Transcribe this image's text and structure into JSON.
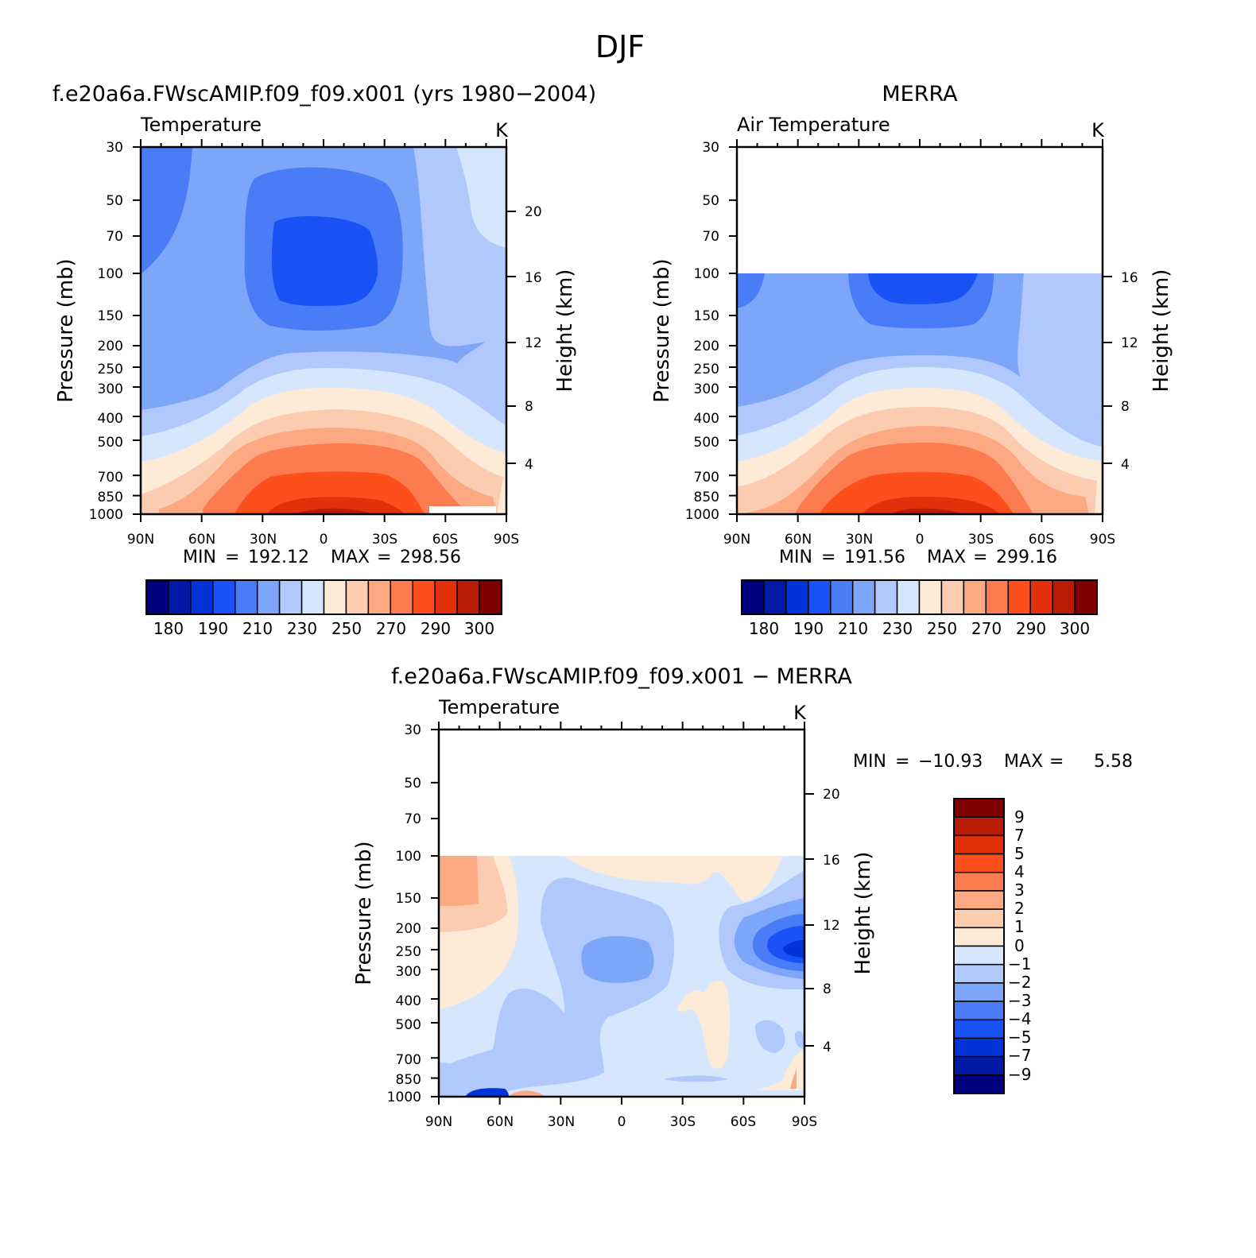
{
  "figure": {
    "title": "DJF",
    "label_min": "MIN",
    "label_max": "MAX",
    "equals": "="
  },
  "chart_data": [
    {
      "type": "heatmap",
      "panel": "model",
      "title": "f.e20a6a.FWscAMIP.f09_f09.x001 (yrs 1980−2004)",
      "variable": "Temperature",
      "units": "K",
      "ylabel": "Pressure (mb)",
      "ylabel_right": "Height (km)",
      "y_scale": "log",
      "ylim": [
        1000,
        30
      ],
      "xlim": [
        "90N",
        "90S"
      ],
      "x_ticks": [
        "90N",
        "60N",
        "30N",
        "0",
        "30S",
        "60S",
        "90S"
      ],
      "y_ticks": [
        30,
        50,
        70,
        100,
        150,
        200,
        250,
        300,
        400,
        500,
        700,
        850,
        1000
      ],
      "height_ticks": [
        4,
        8,
        12,
        16,
        20
      ],
      "min": "192.12",
      "max": "298.56",
      "colorbar_labels": [
        "180",
        "190",
        "210",
        "230",
        "250",
        "270",
        "290",
        "300"
      ]
    },
    {
      "type": "heatmap",
      "panel": "obs",
      "title": "MERRA",
      "variable": "Air Temperature",
      "units": "K",
      "ylabel": "Pressure (mb)",
      "ylabel_right": "Height (km)",
      "y_scale": "log",
      "ylim": [
        1000,
        30
      ],
      "data_top_pressure": 100,
      "xlim": [
        "90N",
        "90S"
      ],
      "x_ticks": [
        "90N",
        "60N",
        "30N",
        "0",
        "30S",
        "60S",
        "90S"
      ],
      "y_ticks": [
        30,
        50,
        70,
        100,
        150,
        200,
        250,
        300,
        400,
        500,
        700,
        850,
        1000
      ],
      "height_ticks": [
        4,
        8,
        12,
        16
      ],
      "min": "191.56",
      "max": "299.16",
      "colorbar_labels": [
        "180",
        "190",
        "210",
        "230",
        "250",
        "270",
        "290",
        "300"
      ]
    },
    {
      "type": "heatmap",
      "panel": "difference",
      "title": "f.e20a6a.FWscAMIP.f09_f09.x001 − MERRA",
      "variable": "Temperature",
      "units": "K",
      "ylabel": "Pressure (mb)",
      "ylabel_right": "Height (km)",
      "y_scale": "log",
      "ylim": [
        1000,
        30
      ],
      "data_top_pressure": 100,
      "xlim": [
        "90N",
        "90S"
      ],
      "x_ticks": [
        "90N",
        "60N",
        "30N",
        "0",
        "30S",
        "60S",
        "90S"
      ],
      "y_ticks": [
        30,
        50,
        70,
        100,
        150,
        200,
        250,
        300,
        400,
        500,
        700,
        850,
        1000
      ],
      "height_ticks": [
        4,
        8,
        12,
        16,
        20
      ],
      "min": "−10.93",
      "max": "5.58",
      "colorbar_labels": [
        "9",
        "7",
        "5",
        "4",
        "3",
        "2",
        "1",
        "0",
        "−1",
        "−2",
        "−3",
        "−4",
        "−5",
        "−7",
        "−9"
      ]
    }
  ],
  "colormaps": {
    "temperature": [
      "#00007f",
      "#0019a7",
      "#0034d8",
      "#1a53f5",
      "#4a7cf7",
      "#7ea6f8",
      "#b0c8fb",
      "#d6e7fd",
      "#fdebd8",
      "#fcccb0",
      "#fca882",
      "#fc7c4f",
      "#fd4f1c",
      "#e3300c",
      "#b81c05",
      "#800000"
    ],
    "difference": [
      "#800000",
      "#b81c05",
      "#e3300c",
      "#fd4f1c",
      "#fc7c4f",
      "#fca882",
      "#fcccb0",
      "#fdebd8",
      "#d6e7fd",
      "#b0c8fb",
      "#7ea6f8",
      "#4a7cf7",
      "#1a53f5",
      "#0034d8",
      "#0019a7",
      "#00007f"
    ]
  }
}
